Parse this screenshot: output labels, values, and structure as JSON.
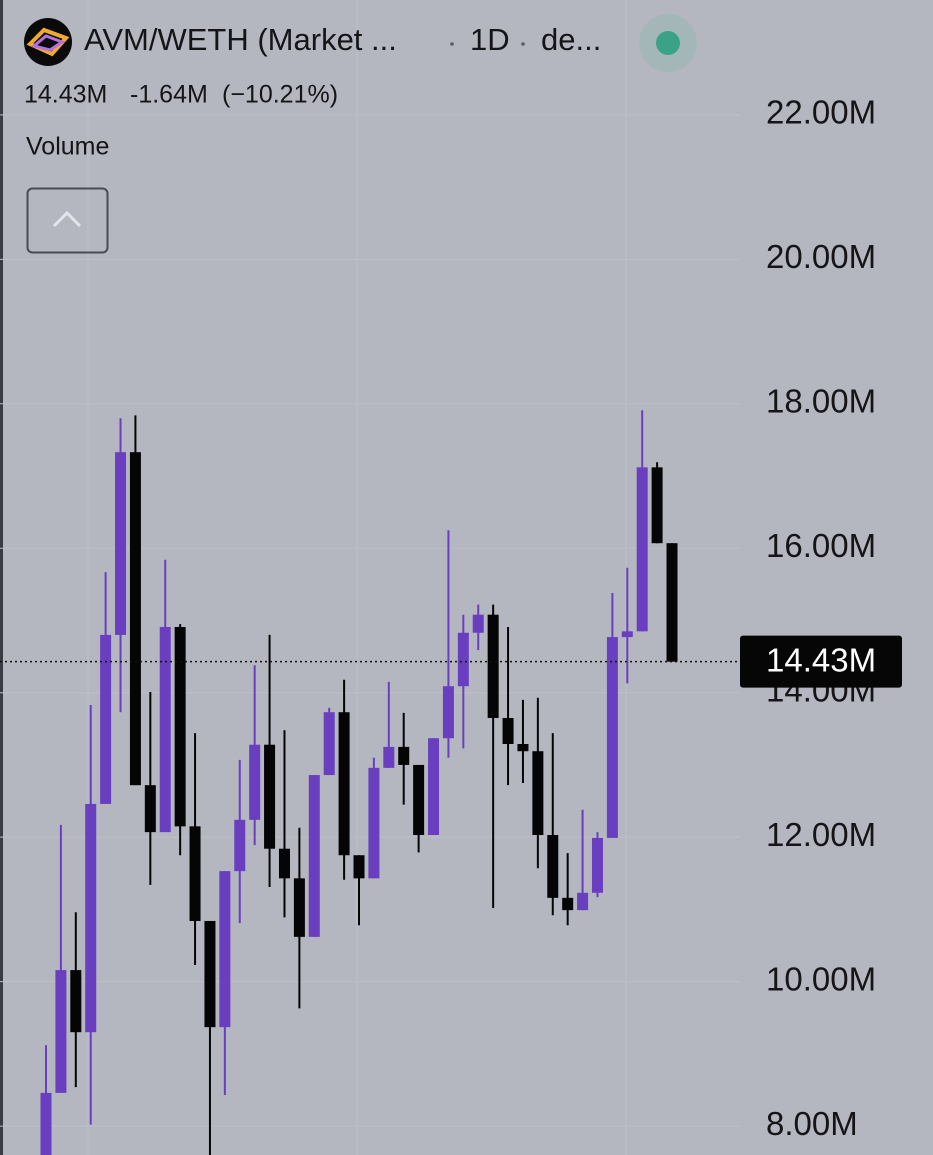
{
  "chart_data": {
    "type": "candlestick",
    "title": "AVM/WETH (Market ...",
    "interval": "1D",
    "source": "de...",
    "indicator": "Volume",
    "last_price": {
      "value": 14430000,
      "label": "14.43M"
    },
    "change": {
      "value": -1640000,
      "label": "-1.64M"
    },
    "change_percent": {
      "value": -10.21,
      "label": "(−10.21%)"
    },
    "up_color": "#6a3fbf",
    "down_color": "#050505",
    "ylim": [
      7600000,
      23590000
    ],
    "yticks": [
      {
        "value": 22000000,
        "label": "22.00M"
      },
      {
        "value": 20000000,
        "label": "20.00M"
      },
      {
        "value": 18000000,
        "label": "18.00M"
      },
      {
        "value": 16000000,
        "label": "16.00M"
      },
      {
        "value": 14000000,
        "label": "14.00M"
      },
      {
        "value": 12000000,
        "label": "12.00M"
      },
      {
        "value": 10000000,
        "label": "10.00M"
      },
      {
        "value": 8000000,
        "label": "8.00M"
      }
    ],
    "grid": true,
    "open": [
      7530000,
      8460000,
      10160000,
      9300000,
      12460000,
      14800000,
      17330000,
      12720000,
      12070000,
      14910000,
      12150000,
      10840000,
      9370000,
      11530000,
      12240000,
      13280000,
      11840000,
      11430000,
      10620000,
      12860000,
      13730000,
      11750000,
      11430000,
      12960000,
      13250000,
      13000000,
      12030000,
      13370000,
      14090000,
      14830000,
      15080000,
      13650000,
      13290000,
      13190000,
      12030000,
      11160000,
      10990000,
      11230000,
      11990000,
      14770000,
      14850000,
      17120000,
      16070000
    ],
    "high": [
      9120000,
      12170000,
      10960000,
      13830000,
      15670000,
      17800000,
      17840000,
      14010000,
      15840000,
      14950000,
      13440000,
      10840000,
      11530000,
      13070000,
      14380000,
      14800000,
      13480000,
      12130000,
      12860000,
      13790000,
      14180000,
      11750000,
      13100000,
      14150000,
      13720000,
      13000000,
      13370000,
      16250000,
      15080000,
      15220000,
      15220000,
      14910000,
      13900000,
      13930000,
      13440000,
      11780000,
      12380000,
      12070000,
      15380000,
      15730000,
      17910000,
      17190000,
      16070000
    ],
    "low": [
      7400000,
      8460000,
      8540000,
      8020000,
      12460000,
      13730000,
      12720000,
      11340000,
      12070000,
      11750000,
      10230000,
      7400000,
      8430000,
      10810000,
      11890000,
      11310000,
      10890000,
      9630000,
      10620000,
      12860000,
      11410000,
      10780000,
      11430000,
      12960000,
      12450000,
      11790000,
      12030000,
      13100000,
      13230000,
      14590000,
      11020000,
      12720000,
      12750000,
      11570000,
      10920000,
      10780000,
      10990000,
      11170000,
      11990000,
      14130000,
      14850000,
      16070000,
      14430000
    ],
    "close": [
      8460000,
      10160000,
      9300000,
      12460000,
      14800000,
      17330000,
      12720000,
      12070000,
      14910000,
      12150000,
      10840000,
      9370000,
      11530000,
      12240000,
      13280000,
      11840000,
      11430000,
      10620000,
      12860000,
      13730000,
      11750000,
      11430000,
      12960000,
      13250000,
      13000000,
      12030000,
      13370000,
      14090000,
      14830000,
      15080000,
      13650000,
      13290000,
      13190000,
      12030000,
      11160000,
      10990000,
      11230000,
      11990000,
      14770000,
      14850000,
      17120000,
      16070000,
      14430000
    ]
  }
}
